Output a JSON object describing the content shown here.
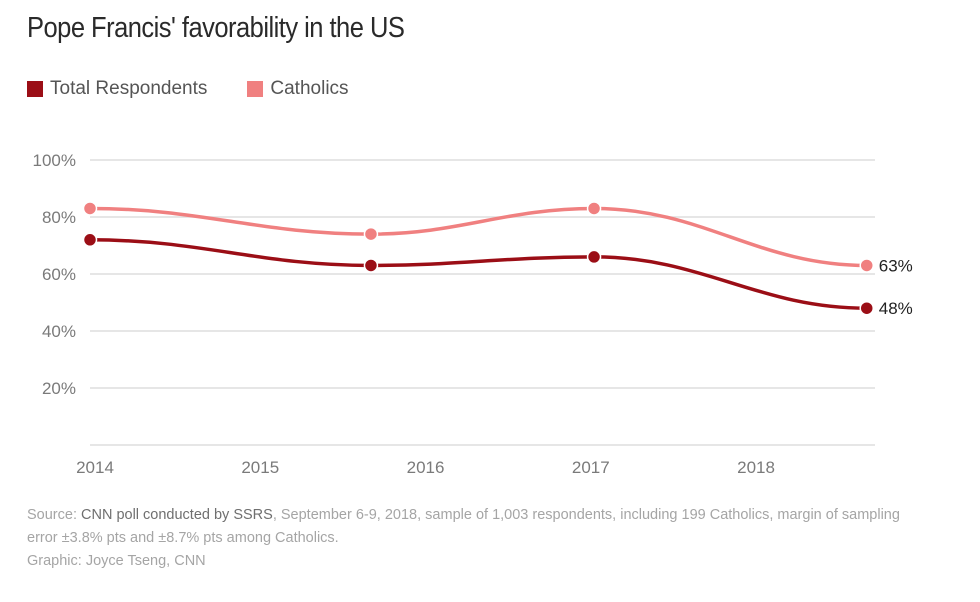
{
  "chart_data": {
    "type": "line",
    "title": "Pope Francis' favorability in the US",
    "xlabel": "",
    "ylabel": "",
    "xlim": [
      2014,
      2018.75
    ],
    "ylim": [
      0,
      100
    ],
    "x_ticks": [
      2014,
      2015,
      2016,
      2017,
      2018
    ],
    "x_tick_labels": [
      "2014",
      "2015",
      "2016",
      "2017",
      "2018"
    ],
    "y_ticks": [
      20,
      40,
      60,
      80,
      100
    ],
    "y_tick_labels": [
      "20%",
      "40%",
      "60%",
      "80%",
      "100%"
    ],
    "grid": true,
    "legend_position": "top-left",
    "x": [
      2014.0,
      2015.7,
      2017.05,
      2018.7
    ],
    "series": [
      {
        "name": "Total Respondents",
        "color": "#9b0e16",
        "values": [
          72,
          63,
          66,
          48
        ],
        "end_label": "48%"
      },
      {
        "name": "Catholics",
        "color": "#f08080",
        "values": [
          83,
          74,
          83,
          63
        ],
        "end_label": "63%"
      }
    ]
  },
  "footer": {
    "source_prefix": "Source: ",
    "source_highlight": "CNN poll conducted by SSRS",
    "source_rest": ", September 6-9, 2018, sample of 1,003 respondents, including 199 Catholics, margin of sampling error ±3.8% pts and ±8.7% pts among Catholics.",
    "credit": "Graphic: Joyce Tseng, CNN"
  }
}
